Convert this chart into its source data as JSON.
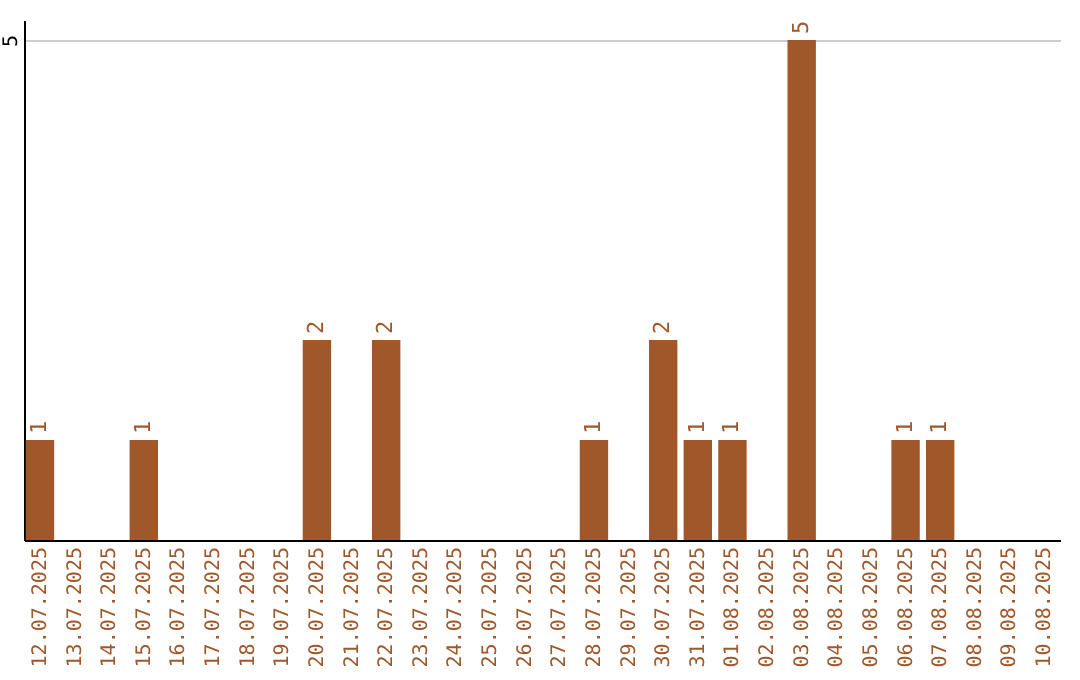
{
  "chart_data": {
    "type": "bar",
    "categories": [
      "12.07.2025",
      "13.07.2025",
      "14.07.2025",
      "15.07.2025",
      "16.07.2025",
      "17.07.2025",
      "18.07.2025",
      "19.07.2025",
      "20.07.2025",
      "21.07.2025",
      "22.07.2025",
      "23.07.2025",
      "24.07.2025",
      "25.07.2025",
      "26.07.2025",
      "27.07.2025",
      "28.07.2025",
      "29.07.2025",
      "30.07.2025",
      "31.07.2025",
      "01.08.2025",
      "02.08.2025",
      "03.08.2025",
      "04.08.2025",
      "05.08.2025",
      "06.08.2025",
      "07.08.2025",
      "08.08.2025",
      "09.08.2025",
      "10.08.2025"
    ],
    "values": [
      1,
      0,
      0,
      1,
      0,
      0,
      0,
      0,
      2,
      0,
      2,
      0,
      0,
      0,
      0,
      0,
      1,
      0,
      2,
      1,
      1,
      0,
      5,
      0,
      0,
      1,
      1,
      0,
      0,
      0
    ],
    "color": "#a0582a",
    "value_labels": [
      "1",
      null,
      null,
      "1",
      null,
      null,
      null,
      null,
      "2",
      null,
      "2",
      null,
      null,
      null,
      null,
      null,
      "1",
      null,
      "2",
      "1",
      "1",
      null,
      "5",
      null,
      null,
      "1",
      "1",
      null,
      null,
      null
    ],
    "ylim": [
      0,
      5.2
    ],
    "yticks": [
      5
    ],
    "grid": "y"
  }
}
